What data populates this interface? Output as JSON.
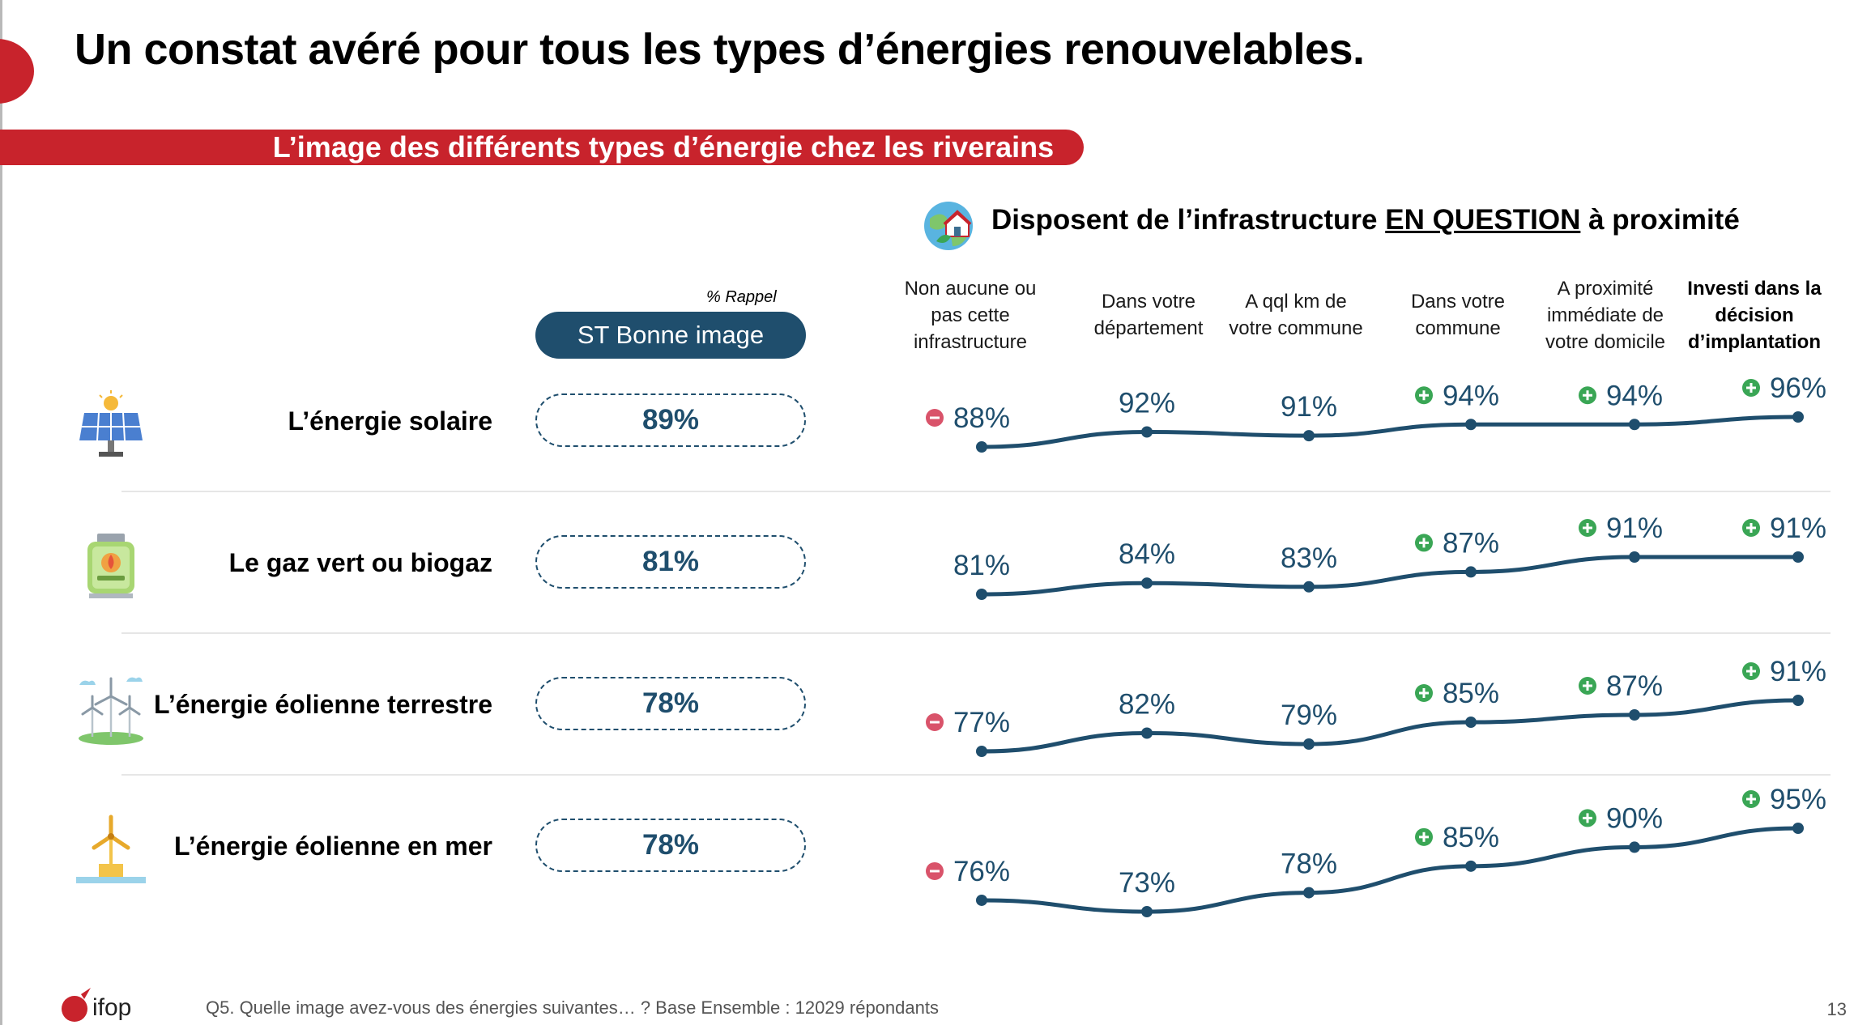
{
  "title": "Un constat avéré pour tous les types d’énergies renouvelables.",
  "subtitle": "L’image des différents types d’énergie chez les riverains",
  "section": {
    "prefix": "Disposent de l’infrastructure ",
    "emphasis": "EN QUESTION",
    "suffix": " à proximité"
  },
  "rappel_note": "% Rappel",
  "st_header": "ST Bonne image",
  "columns": [
    [
      "Non aucune ou",
      "pas cette",
      "infrastructure"
    ],
    [
      "Dans votre",
      "département"
    ],
    [
      "A qql km de",
      "votre commune"
    ],
    [
      "Dans votre",
      "commune"
    ],
    [
      "A proximité",
      "immédiate de",
      "votre domicile"
    ],
    [
      "Investi dans la",
      "décision",
      "d’implantation"
    ]
  ],
  "rows": [
    {
      "label": "L’énergie solaire",
      "st_value": "89%",
      "icon": "solar-panel-icon"
    },
    {
      "label": "Le gaz vert ou biogaz",
      "st_value": "81%",
      "icon": "biogas-tank-icon"
    },
    {
      "label": "L’énergie éolienne terrestre",
      "st_value": "78%",
      "icon": "wind-turbine-onshore-icon"
    },
    {
      "label": "L’énergie éolienne en mer",
      "st_value": "78%",
      "icon": "wind-turbine-offshore-icon"
    }
  ],
  "chart_data": {
    "type": "line",
    "categories": [
      "Non aucune ou pas cette infrastructure",
      "Dans votre département",
      "A qql km de votre commune",
      "Dans votre commune",
      "A proximité immédiate de votre domicile",
      "Investi dans la décision d’implantation"
    ],
    "series": [
      {
        "name": "L’énergie solaire",
        "values": [
          88,
          92,
          91,
          94,
          94,
          96
        ],
        "labels": [
          "88%",
          "92%",
          "91%",
          "94%",
          "94%",
          "96%"
        ],
        "significance": [
          "minus",
          "",
          "",
          "plus",
          "plus",
          "plus"
        ]
      },
      {
        "name": "Le gaz vert ou biogaz",
        "values": [
          81,
          84,
          83,
          87,
          91,
          91
        ],
        "labels": [
          "81%",
          "84%",
          "83%",
          "87%",
          "91%",
          "91%"
        ],
        "significance": [
          "",
          "",
          "",
          "plus",
          "plus",
          "plus"
        ]
      },
      {
        "name": "L’énergie éolienne terrestre",
        "values": [
          77,
          82,
          79,
          85,
          87,
          91
        ],
        "labels": [
          "77%",
          "82%",
          "79%",
          "85%",
          "87%",
          "91%"
        ],
        "significance": [
          "minus",
          "",
          "",
          "plus",
          "plus",
          "plus"
        ]
      },
      {
        "name": "L’énergie éolienne en mer",
        "values": [
          76,
          73,
          78,
          85,
          90,
          95
        ],
        "labels": [
          "76%",
          "73%",
          "78%",
          "85%",
          "90%",
          "95%"
        ],
        "significance": [
          "minus",
          "",
          "",
          "plus",
          "plus",
          "plus"
        ]
      }
    ],
    "colors": {
      "line": "#1f4e6d",
      "plus": "#3aa655",
      "minus": "#d9536a",
      "accent": "#c8232c"
    }
  },
  "footer": {
    "note": "Q5. Quelle image avez-vous des énergies suivantes… ? Base Ensemble : 12029 répondants",
    "page": "13",
    "logo_text": "ifop"
  }
}
